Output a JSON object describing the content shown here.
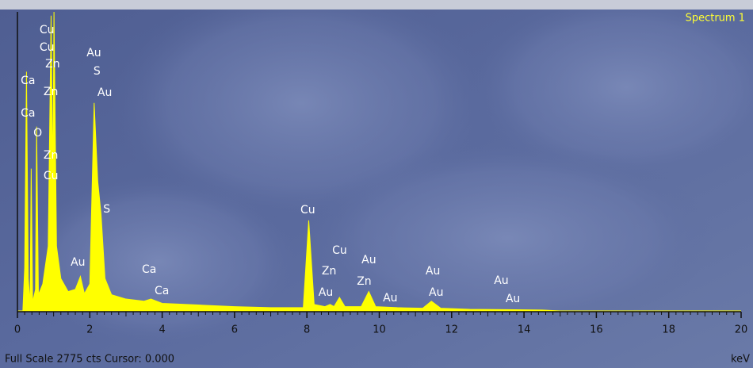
{
  "chart_data": {
    "type": "area",
    "title": "Spectrum 1",
    "footer": "Full Scale 2775 cts Cursor: 0.000",
    "x_label": "keV",
    "color": "#ffff00",
    "xlim": [
      0,
      20
    ],
    "ylim": [
      0,
      2775
    ],
    "xticks": [
      0,
      2,
      4,
      6,
      8,
      10,
      12,
      14,
      16,
      18,
      20
    ],
    "x": [
      0,
      0.15,
      0.2,
      0.25,
      0.3,
      0.35,
      0.38,
      0.42,
      0.5,
      0.53,
      0.58,
      0.7,
      0.85,
      0.93,
      0.98,
      1.01,
      1.08,
      1.2,
      1.4,
      1.6,
      1.74,
      1.85,
      2.0,
      2.12,
      2.22,
      2.31,
      2.42,
      2.6,
      3.0,
      3.5,
      3.69,
      4.0,
      5,
      6,
      7,
      7.9,
      8.05,
      8.2,
      8.5,
      8.64,
      8.75,
      8.9,
      9.05,
      9.5,
      9.71,
      9.9,
      10.5,
      11.2,
      11.44,
      11.7,
      12.5,
      13.5,
      14.5,
      15,
      20
    ],
    "values": [
      0,
      0,
      400,
      2220,
      300,
      60,
      1320,
      80,
      200,
      1710,
      150,
      250,
      600,
      2740,
      1200,
      2775,
      600,
      300,
      180,
      200,
      320,
      160,
      250,
      1930,
      1200,
      900,
      300,
      150,
      110,
      90,
      110,
      70,
      55,
      40,
      30,
      30,
      840,
      60,
      40,
      60,
      40,
      125,
      40,
      40,
      180,
      40,
      30,
      25,
      90,
      25,
      15,
      12,
      8,
      0,
      0
    ],
    "annotations": [
      {
        "text": "Cu",
        "x": 0.61,
        "y": 2605
      },
      {
        "text": "Cu",
        "x": 0.61,
        "y": 2444
      },
      {
        "text": "Ca",
        "x": 0.09,
        "y": 2134
      },
      {
        "text": "Zn",
        "x": 0.77,
        "y": 2289
      },
      {
        "text": "Zn",
        "x": 0.72,
        "y": 2031
      },
      {
        "text": "Ca",
        "x": 0.09,
        "y": 1833
      },
      {
        "text": "O",
        "x": 0.44,
        "y": 1649
      },
      {
        "text": "Zn",
        "x": 0.72,
        "y": 1443
      },
      {
        "text": "Cu",
        "x": 0.72,
        "y": 1251
      },
      {
        "text": "Au",
        "x": 1.91,
        "y": 2392
      },
      {
        "text": "S",
        "x": 2.1,
        "y": 2223
      },
      {
        "text": "Au",
        "x": 2.21,
        "y": 2024
      },
      {
        "text": "S",
        "x": 2.37,
        "y": 942
      },
      {
        "text": "Au",
        "x": 1.47,
        "y": 449
      },
      {
        "text": "Ca",
        "x": 3.44,
        "y": 383
      },
      {
        "text": "Ca",
        "x": 3.79,
        "y": 184
      },
      {
        "text": "Cu",
        "x": 7.82,
        "y": 935
      },
      {
        "text": "Cu",
        "x": 8.7,
        "y": 559
      },
      {
        "text": "Zn",
        "x": 8.41,
        "y": 368
      },
      {
        "text": "Au",
        "x": 8.32,
        "y": 169
      },
      {
        "text": "Au",
        "x": 9.51,
        "y": 471
      },
      {
        "text": "Zn",
        "x": 9.38,
        "y": 272
      },
      {
        "text": "Au",
        "x": 10.1,
        "y": 118
      },
      {
        "text": "Au",
        "x": 11.28,
        "y": 368
      },
      {
        "text": "Au",
        "x": 11.37,
        "y": 169
      },
      {
        "text": "Au",
        "x": 13.17,
        "y": 280
      },
      {
        "text": "Au",
        "x": 13.49,
        "y": 110
      }
    ]
  }
}
